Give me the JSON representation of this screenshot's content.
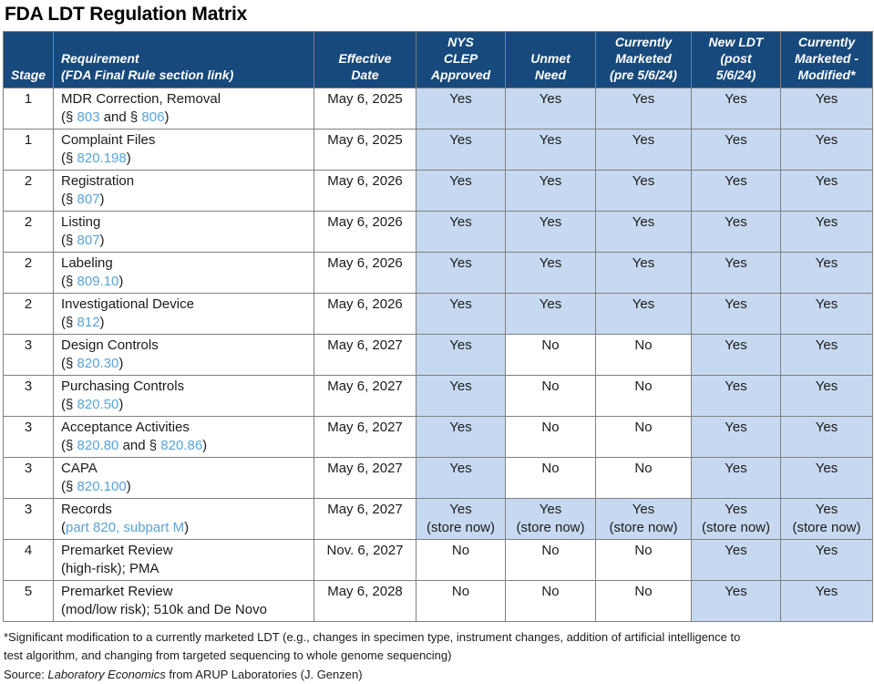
{
  "title": "FDA LDT Regulation Matrix",
  "colors": {
    "header_bg": "#17497C",
    "highlight": "#C6D9F0",
    "link": "#58A3DB",
    "border": "#808080",
    "text": "#1B1B1B"
  },
  "table": {
    "columns": [
      {
        "id": "stage",
        "label": "Stage"
      },
      {
        "id": "requirement",
        "label": "Requirement\n(FDA Final Rule section link)"
      },
      {
        "id": "effective-date",
        "label": "Effective\nDate"
      },
      {
        "id": "nys-clep-approved",
        "label": "NYS\nCLEP\nApproved"
      },
      {
        "id": "unmet-need",
        "label": "Unmet\nNeed"
      },
      {
        "id": "currently-marketed-pre",
        "label": "Currently\nMarketed\n(pre 5/6/24)"
      },
      {
        "id": "new-ldt-post",
        "label": "New LDT\n(post\n5/6/24)"
      },
      {
        "id": "currently-marketed-modified",
        "label": "Currently\nMarketed -\nModified*"
      }
    ],
    "rows": [
      {
        "stage": "1",
        "requirement": "MDR Correction, Removal",
        "reference": [
          {
            "text": "(§ ",
            "link": false
          },
          {
            "text": "803",
            "link": true
          },
          {
            "text": " and § ",
            "link": false
          },
          {
            "text": "806",
            "link": true
          },
          {
            "text": ")",
            "link": false
          }
        ],
        "effective_date": "May 6, 2025",
        "cells": [
          {
            "text": "Yes",
            "highlight": true
          },
          {
            "text": "Yes",
            "highlight": true
          },
          {
            "text": "Yes",
            "highlight": true
          },
          {
            "text": "Yes",
            "highlight": true
          },
          {
            "text": "Yes",
            "highlight": true
          }
        ]
      },
      {
        "stage": "1",
        "requirement": "Complaint Files",
        "reference": [
          {
            "text": "(§ ",
            "link": false
          },
          {
            "text": "820.198",
            "link": true
          },
          {
            "text": ")",
            "link": false
          }
        ],
        "effective_date": "May 6, 2025",
        "cells": [
          {
            "text": "Yes",
            "highlight": true
          },
          {
            "text": "Yes",
            "highlight": true
          },
          {
            "text": "Yes",
            "highlight": true
          },
          {
            "text": "Yes",
            "highlight": true
          },
          {
            "text": "Yes",
            "highlight": true
          }
        ]
      },
      {
        "stage": "2",
        "requirement": "Registration",
        "reference": [
          {
            "text": "(§ ",
            "link": false
          },
          {
            "text": "807",
            "link": true
          },
          {
            "text": ")",
            "link": false
          }
        ],
        "effective_date": "May 6, 2026",
        "cells": [
          {
            "text": "Yes",
            "highlight": true
          },
          {
            "text": "Yes",
            "highlight": true
          },
          {
            "text": "Yes",
            "highlight": true
          },
          {
            "text": "Yes",
            "highlight": true
          },
          {
            "text": "Yes",
            "highlight": true
          }
        ]
      },
      {
        "stage": "2",
        "requirement": "Listing",
        "reference": [
          {
            "text": "(§ ",
            "link": false
          },
          {
            "text": "807",
            "link": true
          },
          {
            "text": ")",
            "link": false
          }
        ],
        "effective_date": "May 6, 2026",
        "cells": [
          {
            "text": "Yes",
            "highlight": true
          },
          {
            "text": "Yes",
            "highlight": true
          },
          {
            "text": "Yes",
            "highlight": true
          },
          {
            "text": "Yes",
            "highlight": true
          },
          {
            "text": "Yes",
            "highlight": true
          }
        ]
      },
      {
        "stage": "2",
        "requirement": "Labeling",
        "reference": [
          {
            "text": "(§ ",
            "link": false
          },
          {
            "text": "809.10",
            "link": true
          },
          {
            "text": ")",
            "link": false
          }
        ],
        "effective_date": "May 6, 2026",
        "cells": [
          {
            "text": "Yes",
            "highlight": true
          },
          {
            "text": "Yes",
            "highlight": true
          },
          {
            "text": "Yes",
            "highlight": true
          },
          {
            "text": "Yes",
            "highlight": true
          },
          {
            "text": "Yes",
            "highlight": true
          }
        ]
      },
      {
        "stage": "2",
        "requirement": "Investigational Device",
        "reference": [
          {
            "text": "(§ ",
            "link": false
          },
          {
            "text": "812",
            "link": true
          },
          {
            "text": ")",
            "link": false
          }
        ],
        "effective_date": "May 6, 2026",
        "cells": [
          {
            "text": "Yes",
            "highlight": true
          },
          {
            "text": "Yes",
            "highlight": true
          },
          {
            "text": "Yes",
            "highlight": true
          },
          {
            "text": "Yes",
            "highlight": true
          },
          {
            "text": "Yes",
            "highlight": true
          }
        ]
      },
      {
        "stage": "3",
        "requirement": "Design Controls",
        "reference": [
          {
            "text": "(§ ",
            "link": false
          },
          {
            "text": "820.30",
            "link": true
          },
          {
            "text": ")",
            "link": false
          }
        ],
        "effective_date": "May 6, 2027",
        "cells": [
          {
            "text": "Yes",
            "highlight": true
          },
          {
            "text": "No",
            "highlight": false
          },
          {
            "text": "No",
            "highlight": false
          },
          {
            "text": "Yes",
            "highlight": true
          },
          {
            "text": "Yes",
            "highlight": true
          }
        ]
      },
      {
        "stage": "3",
        "requirement": "Purchasing Controls",
        "reference": [
          {
            "text": "(§ ",
            "link": false
          },
          {
            "text": "820.50",
            "link": true
          },
          {
            "text": ")",
            "link": false
          }
        ],
        "effective_date": "May 6, 2027",
        "cells": [
          {
            "text": "Yes",
            "highlight": true
          },
          {
            "text": "No",
            "highlight": false
          },
          {
            "text": "No",
            "highlight": false
          },
          {
            "text": "Yes",
            "highlight": true
          },
          {
            "text": "Yes",
            "highlight": true
          }
        ]
      },
      {
        "stage": "3",
        "requirement": "Acceptance Activities",
        "reference": [
          {
            "text": "(§ ",
            "link": false
          },
          {
            "text": "820.80",
            "link": true
          },
          {
            "text": " and § ",
            "link": false
          },
          {
            "text": "820.86",
            "link": true
          },
          {
            "text": ")",
            "link": false
          }
        ],
        "effective_date": "May 6, 2027",
        "cells": [
          {
            "text": "Yes",
            "highlight": true
          },
          {
            "text": "No",
            "highlight": false
          },
          {
            "text": "No",
            "highlight": false
          },
          {
            "text": "Yes",
            "highlight": true
          },
          {
            "text": "Yes",
            "highlight": true
          }
        ]
      },
      {
        "stage": "3",
        "requirement": "CAPA",
        "reference": [
          {
            "text": "(§ ",
            "link": false
          },
          {
            "text": "820.100",
            "link": true
          },
          {
            "text": ")",
            "link": false
          }
        ],
        "effective_date": "May 6, 2027",
        "cells": [
          {
            "text": "Yes",
            "highlight": true
          },
          {
            "text": "No",
            "highlight": false
          },
          {
            "text": "No",
            "highlight": false
          },
          {
            "text": "Yes",
            "highlight": true
          },
          {
            "text": "Yes",
            "highlight": true
          }
        ]
      },
      {
        "stage": "3",
        "requirement": "Records",
        "reference": [
          {
            "text": "(",
            "link": false
          },
          {
            "text": "part 820, subpart M",
            "link": true
          },
          {
            "text": ")",
            "link": false
          }
        ],
        "effective_date": "May 6, 2027",
        "cells": [
          {
            "text": "Yes\n(store now)",
            "highlight": true
          },
          {
            "text": "Yes\n(store now)",
            "highlight": true
          },
          {
            "text": "Yes\n(store now)",
            "highlight": true
          },
          {
            "text": "Yes\n(store now)",
            "highlight": true
          },
          {
            "text": "Yes\n(store now)",
            "highlight": true
          }
        ]
      },
      {
        "stage": "4",
        "requirement": "Premarket Review",
        "reference": [
          {
            "text": "(high-risk); PMA",
            "link": false
          }
        ],
        "effective_date": "Nov. 6, 2027",
        "cells": [
          {
            "text": "No",
            "highlight": false
          },
          {
            "text": "No",
            "highlight": false
          },
          {
            "text": "No",
            "highlight": false
          },
          {
            "text": "Yes",
            "highlight": true
          },
          {
            "text": "Yes",
            "highlight": true
          }
        ]
      },
      {
        "stage": "5",
        "requirement": "Premarket Review",
        "reference": [
          {
            "text": "(mod/low risk); 510k and De Novo",
            "link": false
          }
        ],
        "effective_date": "May 6, 2028",
        "cells": [
          {
            "text": "No",
            "highlight": false
          },
          {
            "text": "No",
            "highlight": false
          },
          {
            "text": "No",
            "highlight": false
          },
          {
            "text": "Yes",
            "highlight": true
          },
          {
            "text": "Yes",
            "highlight": true
          }
        ]
      }
    ]
  },
  "footnote": "*Significant modification to a currently marketed LDT (e.g., changes in specimen type, instrument changes, addition of artificial intelligence to\ntest algorithm, and changing from targeted sequencing to whole genome sequencing)",
  "source": {
    "prefix": "Source: ",
    "publication": "Laboratory Economics",
    "suffix": " from ARUP Laboratories (J. Genzen)"
  }
}
